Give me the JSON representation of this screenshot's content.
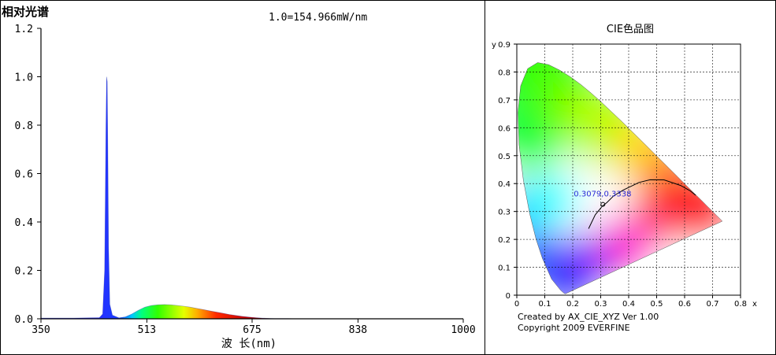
{
  "left_panel": {
    "title": "相对光谱",
    "scale_note": "1.0=154.966mW/nm"
  },
  "right_panel": {
    "title": "CIE色品图",
    "footer_line1": "Created by AX_CIE_XYZ Ver 1.00",
    "footer_line2": "Copyright 2009 EVERFINE"
  },
  "chart_data": [
    {
      "type": "area",
      "title": "相对光谱",
      "annotation": "1.0=154.966mW/nm",
      "xlabel": "波 长(nm)",
      "ylabel": "",
      "xlim": [
        350,
        1000
      ],
      "ylim": [
        0,
        1.2
      ],
      "x_ticks": [
        350,
        513,
        675,
        838,
        1000
      ],
      "x_tick_labels": [
        "350",
        "513",
        "675",
        "838",
        "1000"
      ],
      "y_ticks": [
        0,
        0.2,
        0.4,
        0.6,
        0.8,
        1.0,
        1.2
      ],
      "y_tick_labels": [
        "0.0",
        "0.2",
        "0.4",
        "0.6",
        "0.8",
        "1.0",
        "1.2"
      ],
      "grid": false,
      "series": [
        {
          "x": [
            350,
            400,
            440,
            445,
            448,
            450,
            451,
            452,
            453,
            454,
            456,
            460,
            470,
            480,
            490,
            500,
            510,
            520,
            530,
            540,
            550,
            560,
            570,
            580,
            590,
            600,
            610,
            620,
            630,
            640,
            650,
            660,
            670,
            680,
            690,
            700,
            710,
            720,
            730,
            750,
            800,
            900,
            1000
          ],
          "y": [
            0.003,
            0.003,
            0.005,
            0.02,
            0.2,
            0.8,
            1.0,
            0.98,
            0.7,
            0.3,
            0.06,
            0.015,
            0.004,
            0.008,
            0.02,
            0.035,
            0.048,
            0.055,
            0.058,
            0.059,
            0.058,
            0.055,
            0.052,
            0.048,
            0.043,
            0.038,
            0.033,
            0.028,
            0.023,
            0.018,
            0.014,
            0.01,
            0.007,
            0.005,
            0.003,
            0.002,
            0.001,
            0.001,
            0.001,
            0.0,
            0.0,
            0.0,
            0.0
          ]
        }
      ]
    },
    {
      "type": "scatter",
      "title": "CIE色品图",
      "xlabel": "x",
      "ylabel": "y",
      "xlim": [
        0,
        0.8
      ],
      "ylim": [
        0,
        0.9
      ],
      "x_ticks": [
        0,
        0.1,
        0.2,
        0.3,
        0.4,
        0.5,
        0.6,
        0.7,
        0.8
      ],
      "x_tick_labels": [
        "0",
        "0.1",
        "0.2",
        "0.3",
        "0.4",
        "0.5",
        "0.6",
        "0.7",
        "0.8"
      ],
      "y_ticks": [
        0,
        0.1,
        0.2,
        0.3,
        0.4,
        0.5,
        0.6,
        0.7,
        0.8,
        0.9
      ],
      "y_tick_labels": [
        "0",
        "0.1",
        "0.2",
        "0.3",
        "0.4",
        "0.5",
        "0.6",
        "0.7",
        "0.8",
        "0.9"
      ],
      "grid": true,
      "point": {
        "x": 0.3079,
        "y": 0.3338,
        "label": "0.3079,0.3338"
      },
      "locus": {
        "x": [
          0.1741,
          0.1738,
          0.1726,
          0.1689,
          0.1566,
          0.1241,
          0.0913,
          0.0687,
          0.0454,
          0.0235,
          0.0082,
          0.0039,
          0.0139,
          0.0389,
          0.0743,
          0.1142,
          0.1547,
          0.1929,
          0.2296,
          0.2658,
          0.3016,
          0.3373,
          0.3731,
          0.4087,
          0.4441,
          0.4788,
          0.5125,
          0.5448,
          0.5752,
          0.6029,
          0.627,
          0.6482,
          0.6658,
          0.6801,
          0.6915,
          0.7006,
          0.7079,
          0.714,
          0.719,
          0.723,
          0.726,
          0.7347
        ],
        "y": [
          0.005,
          0.0049,
          0.0048,
          0.0069,
          0.0177,
          0.0578,
          0.1327,
          0.2007,
          0.295,
          0.4127,
          0.5384,
          0.6548,
          0.7502,
          0.812,
          0.8338,
          0.8262,
          0.8059,
          0.7816,
          0.7543,
          0.7243,
          0.6923,
          0.6589,
          0.6245,
          0.5896,
          0.5547,
          0.5202,
          0.4866,
          0.4544,
          0.4242,
          0.3965,
          0.3725,
          0.3514,
          0.334,
          0.3197,
          0.3083,
          0.2993,
          0.292,
          0.2859,
          0.2809,
          0.277,
          0.274,
          0.2653
        ]
      },
      "planckian": {
        "x": [
          0.2565,
          0.2807,
          0.3065,
          0.3221,
          0.3457,
          0.3805,
          0.4369,
          0.4764,
          0.5266,
          0.5857,
          0.6198,
          0.6396
        ],
        "y": [
          0.2384,
          0.2884,
          0.3198,
          0.3318,
          0.3556,
          0.3768,
          0.4041,
          0.4137,
          0.4133,
          0.3932,
          0.3742,
          0.358
        ]
      },
      "footer": [
        "Created by AX_CIE_XYZ Ver 1.00",
        "Copyright 2009 EVERFINE"
      ]
    }
  ]
}
